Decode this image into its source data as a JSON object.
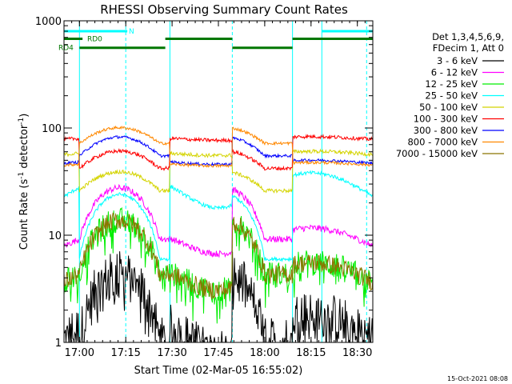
{
  "chart_data": {
    "type": "line",
    "title": "RHESSI Observing Summary Count Rates",
    "xlabel": "Start Time (02-Mar-05 16:55:02)",
    "ylabel_main": "Count Rate (s",
    "ylabel_sup1": "-1",
    "ylabel_mid": " detector",
    "ylabel_sup2": "-1",
    "ylabel_end": ")",
    "y_scale": "log",
    "xlim": [
      0,
      100
    ],
    "ylim": [
      1,
      1000
    ],
    "x_ticks": [
      {
        "value": 5,
        "label": "17:00"
      },
      {
        "value": 20,
        "label": "17:15"
      },
      {
        "value": 35,
        "label": "17:30"
      },
      {
        "value": 50,
        "label": "17:45"
      },
      {
        "value": 65,
        "label": "18:00"
      },
      {
        "value": 80,
        "label": "18:15"
      },
      {
        "value": 95,
        "label": "18:30"
      }
    ],
    "y_ticks": [
      {
        "value": 1,
        "label": "1"
      },
      {
        "value": 10,
        "label": "10"
      },
      {
        "value": 100,
        "label": "100"
      },
      {
        "value": 1000,
        "label": "1000"
      }
    ],
    "legend": {
      "placement": "right",
      "header1": "Det 1,3,4,5,6,9,",
      "header2": "FDecim 1, Att 0"
    },
    "series": [
      {
        "name": "3 - 6 keV",
        "color": "#000000",
        "bg": 1.3,
        "night": 1.0,
        "peak": 4.2,
        "noise": 0.55,
        "spiky": true
      },
      {
        "name": "6 - 12 keV",
        "color": "#ff00ff",
        "bg": 9.2,
        "night": 9.2,
        "peak": 3.0,
        "noise": 0.07
      },
      {
        "name": "12 - 25 keV",
        "color": "#00ee00",
        "bg": 4.3,
        "night": 4.3,
        "peak": 3.2,
        "noise": 0.28,
        "spiky": true
      },
      {
        "name": "25 - 50 keV",
        "color": "#00ffff",
        "bg": 28,
        "night": 6.0,
        "peak": 4.0,
        "noise": 0.04
      },
      {
        "name": "50 - 100 keV",
        "color": "#d4d400",
        "bg": 58,
        "night": 26,
        "peak": 0.5,
        "noise": 0.04
      },
      {
        "name": "100 - 300 keV",
        "color": "#ff0000",
        "bg": 80,
        "night": 42,
        "peak": 0.45,
        "noise": 0.04
      },
      {
        "name": "300 - 800 keV",
        "color": "#0000ff",
        "bg": 48,
        "night": 55,
        "peak": 0.5,
        "noise": 0.03
      },
      {
        "name": "800 - 7000 keV",
        "color": "#ff8800",
        "bg": 46,
        "night": 72,
        "peak": 0.4,
        "noise": 0.03
      },
      {
        "name": "7000 - 15000 keV",
        "color": "#8b7500",
        "bg": 4.3,
        "night": 4.3,
        "peak": 3.2,
        "noise": 0.2
      }
    ],
    "saa_intervals": [
      [
        0,
        5
      ],
      [
        34.3,
        54.5
      ],
      [
        74,
        100
      ]
    ],
    "night_intervals": [
      [
        5,
        34.3
      ],
      [
        54.5,
        74
      ]
    ],
    "day_peaks": [
      18,
      52
    ],
    "flags": [
      {
        "label": "N",
        "color": "#00ffff",
        "y": 800,
        "segments": [
          [
            0,
            20.5
          ],
          [
            83.5,
            100
          ]
        ],
        "label_x": 21
      },
      {
        "label": "RD0",
        "color": "#007700",
        "y": 680,
        "segments": [
          [
            0,
            6
          ],
          [
            32.8,
            54.5
          ],
          [
            74,
            100
          ]
        ],
        "label_x": 7.5
      },
      {
        "label": "RD4",
        "color": "#007700",
        "y": 560,
        "segments": [
          [
            5,
            32.8
          ],
          [
            54.5,
            74
          ]
        ],
        "label_x": 0
      }
    ],
    "vlines": [
      {
        "x": 0,
        "color": "#00ffff",
        "dashed": false
      },
      {
        "x": 5,
        "color": "#00ffff",
        "dashed": false
      },
      {
        "x": 20,
        "color": "#00ffff",
        "dashed": true
      },
      {
        "x": 34.3,
        "color": "#00ffff",
        "dashed": false
      },
      {
        "x": 54.5,
        "color": "#00ffff",
        "dashed": true
      },
      {
        "x": 74,
        "color": "#00ffff",
        "dashed": false
      },
      {
        "x": 83.5,
        "color": "#00ffff",
        "dashed": false
      },
      {
        "x": 98,
        "color": "#00ffff",
        "dashed": true
      }
    ],
    "timestamp": "15-Oct-2021 08:08"
  }
}
